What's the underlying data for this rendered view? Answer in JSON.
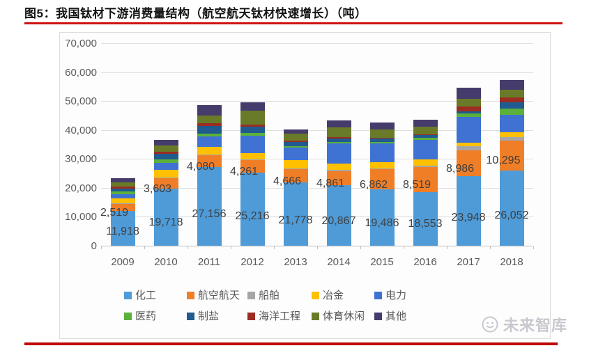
{
  "page": {
    "title": "图5：我国钛材下游消费量结构（航空航天钛材快速增长）（吨）"
  },
  "watermark": {
    "text": "未来智库"
  },
  "colors": {
    "accent_red": "#cf1310",
    "axis_text": "#595959",
    "data_label_text": "#3f3f3f"
  },
  "chart_data": {
    "type": "bar",
    "stacked": true,
    "title": "图5：我国钛材下游消费量结构（航空航天钛材快速增长）（吨）",
    "unit": "吨",
    "categories": [
      "2009",
      "2010",
      "2011",
      "2012",
      "2013",
      "2014",
      "2015",
      "2016",
      "2017",
      "2018"
    ],
    "ylim": [
      0,
      70000
    ],
    "ytick_step": 10000,
    "ytick_labels": [
      "0",
      "10,000",
      "20,000",
      "30,000",
      "40,000",
      "50,000",
      "60,000",
      "70,000"
    ],
    "grid": true,
    "legend_position": "bottom",
    "labeled_series": [
      "化工",
      "航空航天"
    ],
    "series": [
      {
        "name": "化工",
        "color": "#4e9bd8",
        "values": [
          11918,
          19718,
          27156,
          25216,
          21778,
          20867,
          19486,
          18553,
          23948,
          26052
        ]
      },
      {
        "name": "航空航天",
        "color": "#f07e27",
        "values": [
          2519,
          3603,
          4080,
          4261,
          4666,
          4861,
          6862,
          8519,
          8986,
          10295
        ]
      },
      {
        "name": "船舶",
        "color": "#a6a6a6",
        "values": [
          200,
          300,
          350,
          400,
          300,
          400,
          400,
          500,
          1400,
          1200
        ]
      },
      {
        "name": "冶金",
        "color": "#ffc000",
        "values": [
          1700,
          2500,
          2600,
          2100,
          2800,
          2300,
          2200,
          2300,
          1300,
          1600
        ]
      },
      {
        "name": "电力",
        "color": "#3f72d2",
        "values": [
          1500,
          2600,
          3600,
          6000,
          4300,
          7000,
          6500,
          6800,
          8800,
          6000
        ]
      },
      {
        "name": "医药",
        "color": "#5cb03c",
        "values": [
          1000,
          1200,
          900,
          900,
          500,
          500,
          500,
          500,
          1200,
          2300
        ]
      },
      {
        "name": "制盐",
        "color": "#1f5b8e",
        "values": [
          1000,
          1800,
          2800,
          2200,
          1400,
          1200,
          1000,
          1000,
          900,
          2000
        ]
      },
      {
        "name": "海洋工程",
        "color": "#9b2d23",
        "values": [
          600,
          800,
          900,
          800,
          500,
          500,
          400,
          400,
          1500,
          1900
        ]
      },
      {
        "name": "体育休闲",
        "color": "#697b28",
        "values": [
          1400,
          2000,
          2700,
          4700,
          2500,
          3200,
          2800,
          2600,
          2700,
          2600
        ]
      },
      {
        "name": "其他",
        "color": "#463c6b",
        "values": [
          1400,
          2000,
          3400,
          2900,
          1450,
          2550,
          2350,
          2250,
          3950,
          3350
        ]
      }
    ]
  }
}
